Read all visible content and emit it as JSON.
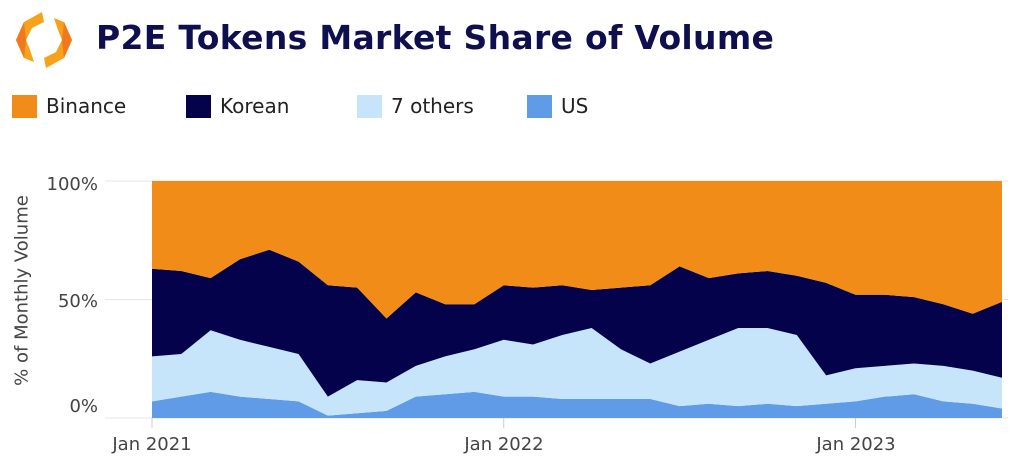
{
  "header": {
    "title": "P2E Tokens Market Share of Volume"
  },
  "chart_data": {
    "type": "area",
    "stacked": true,
    "normalized": true,
    "title": "P2E Tokens Market Share of Volume",
    "ylabel": "% of Monthly Volume",
    "xlabel": "",
    "ylim": [
      0,
      100
    ],
    "yticks": [
      "0%",
      "50%",
      "100%"
    ],
    "xtick_labels": [
      "Jan 2021",
      "Jan 2022",
      "Jan 2023"
    ],
    "legend_position": "top-left",
    "grid": true,
    "x": [
      "2021-01",
      "2021-02",
      "2021-03",
      "2021-04",
      "2021-05",
      "2021-06",
      "2021-07",
      "2021-08",
      "2021-09",
      "2021-10",
      "2021-11",
      "2021-12",
      "2022-01",
      "2022-02",
      "2022-03",
      "2022-04",
      "2022-05",
      "2022-06",
      "2022-07",
      "2022-08",
      "2022-09",
      "2022-10",
      "2022-11",
      "2022-12",
      "2023-01",
      "2023-02",
      "2023-03",
      "2023-04",
      "2023-05",
      "2023-06"
    ],
    "series": [
      {
        "name": "US",
        "color": "#5f9be6",
        "values": [
          7,
          9,
          11,
          9,
          8,
          7,
          1,
          2,
          3,
          9,
          10,
          11,
          9,
          9,
          8,
          8,
          8,
          8,
          5,
          6,
          5,
          6,
          5,
          6,
          7,
          9,
          10,
          7,
          6,
          4
        ]
      },
      {
        "name": "7 others",
        "color": "#c6e4fa",
        "values": [
          19,
          18,
          26,
          24,
          22,
          20,
          8,
          14,
          12,
          13,
          16,
          18,
          24,
          22,
          27,
          30,
          21,
          15,
          23,
          27,
          33,
          32,
          30,
          12,
          14,
          13,
          13,
          15,
          14,
          13
        ]
      },
      {
        "name": "Korean",
        "color": "#03024a",
        "values": [
          37,
          35,
          22,
          34,
          41,
          39,
          47,
          39,
          27,
          31,
          22,
          19,
          23,
          24,
          21,
          16,
          26,
          33,
          36,
          26,
          23,
          24,
          25,
          39,
          31,
          30,
          28,
          26,
          24,
          32
        ]
      },
      {
        "name": "Binance",
        "color": "#f08c17",
        "values": [
          37,
          38,
          41,
          33,
          29,
          34,
          44,
          45,
          58,
          47,
          52,
          52,
          44,
          45,
          44,
          46,
          45,
          44,
          36,
          41,
          39,
          38,
          40,
          43,
          48,
          48,
          49,
          52,
          56,
          51
        ]
      }
    ]
  },
  "legend": [
    {
      "label": "Binance",
      "color": "#f08c17"
    },
    {
      "label": "Korean",
      "color": "#03024a"
    },
    {
      "label": "7 others",
      "color": "#c6e4fa"
    },
    {
      "label": "US",
      "color": "#5f9be6"
    }
  ]
}
